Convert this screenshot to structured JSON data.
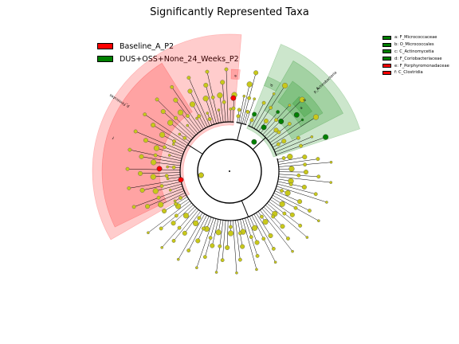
{
  "chart_data": {
    "type": "cladogram",
    "title": "Significantly Represented Taxa",
    "groups": [
      {
        "name": "Baseline_A_P2",
        "color": "#ff0000"
      },
      {
        "name": "DUS+OSS+None_24_Weeks_P2",
        "color": "#008000"
      }
    ],
    "taxa_legend": [
      {
        "text": "a: F_Micrococcaceae",
        "color": "#008000"
      },
      {
        "text": "b: O_Micrococcales",
        "color": "#008000"
      },
      {
        "text": "c: C_Actinomycetia",
        "color": "#008000"
      },
      {
        "text": "d: F_Coriobacteriaceae",
        "color": "#008000"
      },
      {
        "text": "e: F_Porphyromonadaceae",
        "color": "#ff0000"
      },
      {
        "text": "f: C_Clostridia",
        "color": "#ff0000"
      }
    ],
    "clades": [
      {
        "label": "p_Firmicutes",
        "color": "#ff0000",
        "start_deg": -120,
        "end_deg": 5,
        "level": "phylum"
      },
      {
        "label": "f",
        "color": "#ff0000",
        "start_deg": -116,
        "end_deg": -32,
        "level": "class"
      },
      {
        "label": "p_Actinobacteria",
        "color": "#008000",
        "start_deg": 22,
        "end_deg": 72,
        "level": "phylum"
      },
      {
        "label": "c",
        "color": "#008000",
        "start_deg": 30,
        "end_deg": 63,
        "level": "class"
      },
      {
        "label": "b",
        "color": "#008000",
        "start_deg": 35,
        "end_deg": 58,
        "level": "order"
      },
      {
        "label": "a",
        "color": "#008000",
        "start_deg": 43,
        "end_deg": 54,
        "level": "family"
      },
      {
        "label": "d",
        "color": "#008000",
        "start_deg": 22,
        "end_deg": 30,
        "level": "family"
      },
      {
        "label": "e",
        "color": "#ff0000",
        "start_deg": 1,
        "end_deg": 6,
        "level": "family"
      }
    ]
  }
}
